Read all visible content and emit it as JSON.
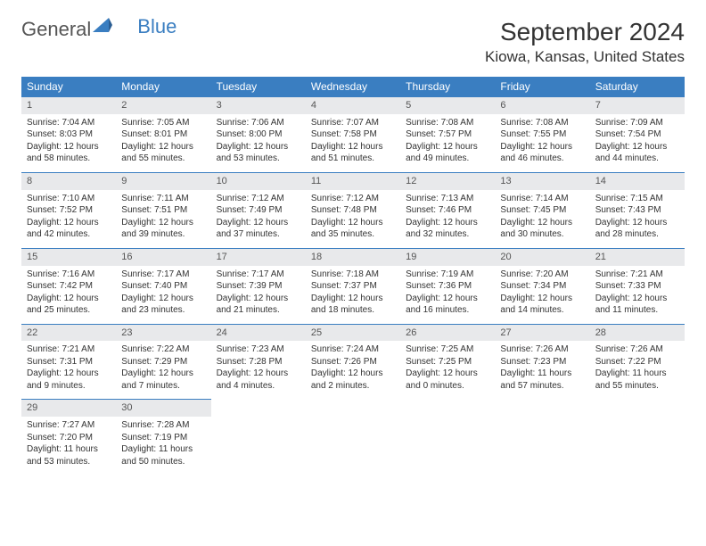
{
  "logo": {
    "part1": "General",
    "part2": "Blue"
  },
  "title": "September 2024",
  "location": "Kiowa, Kansas, United States",
  "colors": {
    "header_bg": "#3a7ec1",
    "header_fg": "#ffffff",
    "daynum_bg": "#e8e9eb",
    "border": "#3a7ec1",
    "background": "#ffffff",
    "text": "#333333"
  },
  "weekdays": [
    "Sunday",
    "Monday",
    "Tuesday",
    "Wednesday",
    "Thursday",
    "Friday",
    "Saturday"
  ],
  "days": [
    {
      "n": 1,
      "sunrise": "7:04 AM",
      "sunset": "8:03 PM",
      "dl": "12 hours and 58 minutes."
    },
    {
      "n": 2,
      "sunrise": "7:05 AM",
      "sunset": "8:01 PM",
      "dl": "12 hours and 55 minutes."
    },
    {
      "n": 3,
      "sunrise": "7:06 AM",
      "sunset": "8:00 PM",
      "dl": "12 hours and 53 minutes."
    },
    {
      "n": 4,
      "sunrise": "7:07 AM",
      "sunset": "7:58 PM",
      "dl": "12 hours and 51 minutes."
    },
    {
      "n": 5,
      "sunrise": "7:08 AM",
      "sunset": "7:57 PM",
      "dl": "12 hours and 49 minutes."
    },
    {
      "n": 6,
      "sunrise": "7:08 AM",
      "sunset": "7:55 PM",
      "dl": "12 hours and 46 minutes."
    },
    {
      "n": 7,
      "sunrise": "7:09 AM",
      "sunset": "7:54 PM",
      "dl": "12 hours and 44 minutes."
    },
    {
      "n": 8,
      "sunrise": "7:10 AM",
      "sunset": "7:52 PM",
      "dl": "12 hours and 42 minutes."
    },
    {
      "n": 9,
      "sunrise": "7:11 AM",
      "sunset": "7:51 PM",
      "dl": "12 hours and 39 minutes."
    },
    {
      "n": 10,
      "sunrise": "7:12 AM",
      "sunset": "7:49 PM",
      "dl": "12 hours and 37 minutes."
    },
    {
      "n": 11,
      "sunrise": "7:12 AM",
      "sunset": "7:48 PM",
      "dl": "12 hours and 35 minutes."
    },
    {
      "n": 12,
      "sunrise": "7:13 AM",
      "sunset": "7:46 PM",
      "dl": "12 hours and 32 minutes."
    },
    {
      "n": 13,
      "sunrise": "7:14 AM",
      "sunset": "7:45 PM",
      "dl": "12 hours and 30 minutes."
    },
    {
      "n": 14,
      "sunrise": "7:15 AM",
      "sunset": "7:43 PM",
      "dl": "12 hours and 28 minutes."
    },
    {
      "n": 15,
      "sunrise": "7:16 AM",
      "sunset": "7:42 PM",
      "dl": "12 hours and 25 minutes."
    },
    {
      "n": 16,
      "sunrise": "7:17 AM",
      "sunset": "7:40 PM",
      "dl": "12 hours and 23 minutes."
    },
    {
      "n": 17,
      "sunrise": "7:17 AM",
      "sunset": "7:39 PM",
      "dl": "12 hours and 21 minutes."
    },
    {
      "n": 18,
      "sunrise": "7:18 AM",
      "sunset": "7:37 PM",
      "dl": "12 hours and 18 minutes."
    },
    {
      "n": 19,
      "sunrise": "7:19 AM",
      "sunset": "7:36 PM",
      "dl": "12 hours and 16 minutes."
    },
    {
      "n": 20,
      "sunrise": "7:20 AM",
      "sunset": "7:34 PM",
      "dl": "12 hours and 14 minutes."
    },
    {
      "n": 21,
      "sunrise": "7:21 AM",
      "sunset": "7:33 PM",
      "dl": "12 hours and 11 minutes."
    },
    {
      "n": 22,
      "sunrise": "7:21 AM",
      "sunset": "7:31 PM",
      "dl": "12 hours and 9 minutes."
    },
    {
      "n": 23,
      "sunrise": "7:22 AM",
      "sunset": "7:29 PM",
      "dl": "12 hours and 7 minutes."
    },
    {
      "n": 24,
      "sunrise": "7:23 AM",
      "sunset": "7:28 PM",
      "dl": "12 hours and 4 minutes."
    },
    {
      "n": 25,
      "sunrise": "7:24 AM",
      "sunset": "7:26 PM",
      "dl": "12 hours and 2 minutes."
    },
    {
      "n": 26,
      "sunrise": "7:25 AM",
      "sunset": "7:25 PM",
      "dl": "12 hours and 0 minutes."
    },
    {
      "n": 27,
      "sunrise": "7:26 AM",
      "sunset": "7:23 PM",
      "dl": "11 hours and 57 minutes."
    },
    {
      "n": 28,
      "sunrise": "7:26 AM",
      "sunset": "7:22 PM",
      "dl": "11 hours and 55 minutes."
    },
    {
      "n": 29,
      "sunrise": "7:27 AM",
      "sunset": "7:20 PM",
      "dl": "11 hours and 53 minutes."
    },
    {
      "n": 30,
      "sunrise": "7:28 AM",
      "sunset": "7:19 PM",
      "dl": "11 hours and 50 minutes."
    }
  ],
  "labels": {
    "sunrise": "Sunrise:",
    "sunset": "Sunset:",
    "daylight": "Daylight:"
  }
}
